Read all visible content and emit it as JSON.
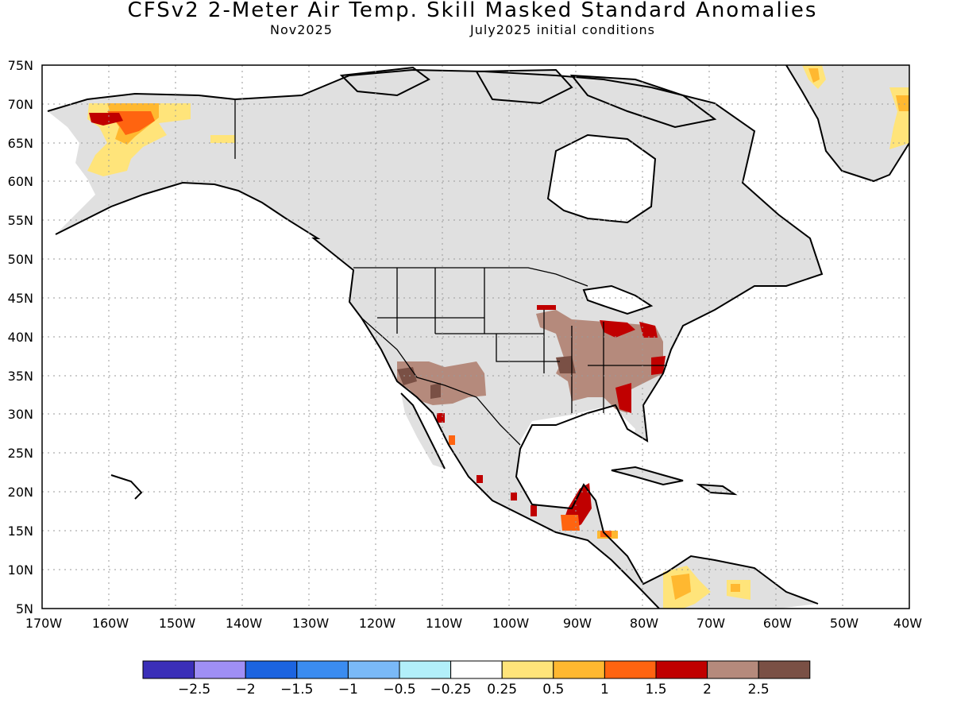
{
  "title": "CFSv2 2-Meter Air Temp. Skill Masked Standard Anomalies",
  "subtitle_left": "Nov2025",
  "subtitle_right": "July2025 initial conditions",
  "map": {
    "projection": "cylindrical-equidistant",
    "lon_range": [
      -170,
      -40
    ],
    "lat_range": [
      5,
      75
    ],
    "grid": "dotted",
    "lat_labels": [
      "75N",
      "70N",
      "65N",
      "60N",
      "55N",
      "50N",
      "45N",
      "40N",
      "35N",
      "30N",
      "25N",
      "20N",
      "15N",
      "10N",
      "5N"
    ],
    "lon_labels": [
      "170W",
      "160W",
      "150W",
      "140W",
      "130W",
      "120W",
      "110W",
      "100W",
      "90W",
      "80W",
      "70W",
      "60W",
      "50W",
      "40W"
    ],
    "masked_color": "#e0e0e0",
    "anomaly_regions": [
      {
        "name": "northern-alaska",
        "level": "1.5"
      },
      {
        "name": "western-alaska",
        "level": "0.5"
      },
      {
        "name": "greenland-east-coast",
        "level": "0.5"
      },
      {
        "name": "southwest-us",
        "level": "2.5"
      },
      {
        "name": "southeast-us",
        "level": "2.5"
      },
      {
        "name": "mid-atlantic",
        "level": "2"
      },
      {
        "name": "central-america",
        "level": "1.5"
      },
      {
        "name": "colombia-venezuela",
        "level": "0.5"
      }
    ]
  },
  "colorbar": {
    "colors": [
      "#3b2fb8",
      "#9f8ff5",
      "#1c64e0",
      "#3b8cf0",
      "#7ab9f7",
      "#b2effa",
      "#ffffff",
      "#ffe47a",
      "#ffb830",
      "#ff6410",
      "#c00000",
      "#b58a7c",
      "#7a5045"
    ],
    "labels": [
      "-2.5",
      "-2",
      "-1.5",
      "-1",
      "-0.5",
      "-0.25",
      "0.25",
      "0.5",
      "1",
      "1.5",
      "2",
      "2.5"
    ]
  }
}
